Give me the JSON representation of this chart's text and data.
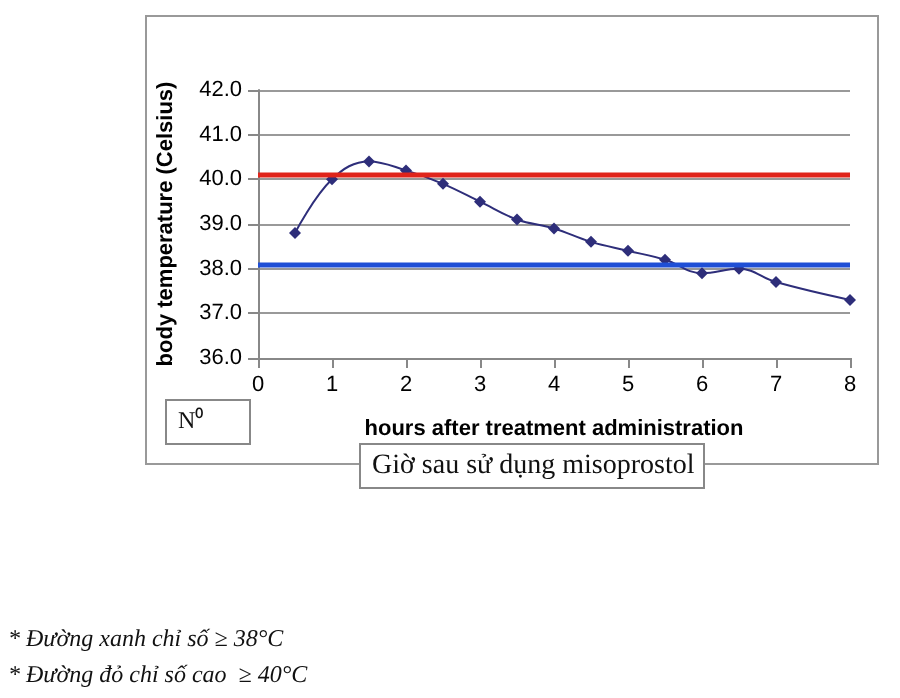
{
  "chart_data": {
    "type": "line",
    "xlabel": "hours after treatment administration",
    "ylabel": "body temperature (Celsius)",
    "x": [
      0.5,
      1,
      1.5,
      2,
      2.5,
      3,
      3.5,
      4,
      4.5,
      5,
      5.5,
      6,
      6.5,
      7,
      8
    ],
    "series": [
      {
        "color": "#2e2e7a",
        "values": [
          38.8,
          40.0,
          40.4,
          40.2,
          39.9,
          39.5,
          39.1,
          38.9,
          38.6,
          38.4,
          38.2,
          37.9,
          38.0,
          37.7,
          37.3
        ]
      }
    ],
    "xlim": [
      0,
      8
    ],
    "xticks": [
      0,
      1,
      2,
      3,
      4,
      5,
      6,
      7,
      8
    ],
    "ylim": [
      36,
      42
    ],
    "yticks": [
      {
        "value": 36,
        "label": "36.0"
      },
      {
        "value": 37,
        "label": "37.0"
      },
      {
        "value": 38,
        "label": "38.0"
      },
      {
        "value": 39,
        "label": "39.0"
      },
      {
        "value": 40,
        "label": "40.0"
      },
      {
        "value": 41,
        "label": "41.0"
      },
      {
        "value": 42,
        "label": "42.0"
      }
    ],
    "ref_lines": [
      {
        "axis": "y",
        "value": 40.1,
        "color": "#e0241b"
      },
      {
        "axis": "y",
        "value": 38.1,
        "color": "#1f4fd6"
      }
    ],
    "grid": "y",
    "marker": "diamond",
    "line_style": "solid",
    "annotations": [
      "N⁰",
      "Giờ sau sử dụng misoprostol",
      "* Đường xanh chỉ số ≥ 38°C",
      "* Đường đỏ chỉ số cao  ≥ 40°C"
    ]
  }
}
